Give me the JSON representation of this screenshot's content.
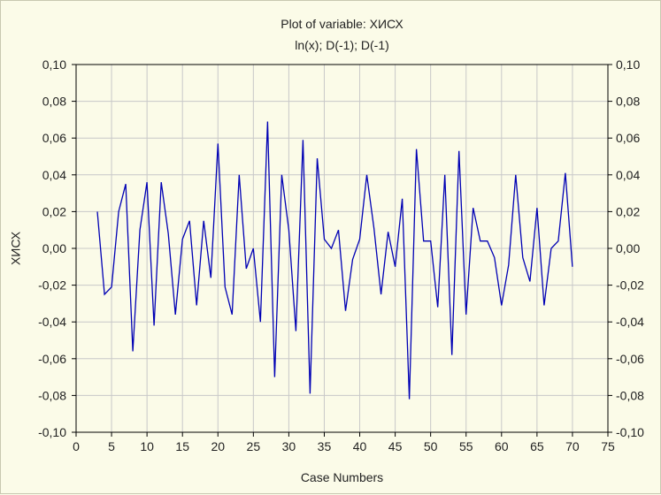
{
  "chart_data": {
    "type": "line",
    "title": "Plot of variable: ХИСХ",
    "subtitle": "ln(x); D(-1); D(-1)",
    "xlabel": "Case Numbers",
    "ylabel": "ХИСХ",
    "xlim": [
      0,
      75
    ],
    "ylim": [
      -0.1,
      0.1
    ],
    "x_ticks": [
      0,
      5,
      10,
      15,
      20,
      25,
      30,
      35,
      40,
      45,
      50,
      55,
      60,
      65,
      70,
      75
    ],
    "y_ticks": [
      -0.1,
      -0.08,
      -0.06,
      -0.04,
      -0.02,
      0.0,
      0.02,
      0.04,
      0.06,
      0.08,
      0.1
    ],
    "y_tick_labels": [
      "-0,10",
      "-0,08",
      "-0,06",
      "-0,04",
      "-0,02",
      "0,00",
      "0,02",
      "0,04",
      "0,06",
      "0,08",
      "0,10"
    ],
    "grid": true,
    "line_color": "#0000b4",
    "grid_color": "#c8c8c8",
    "series": [
      {
        "x": [
          3,
          4,
          5,
          6,
          7,
          8,
          9,
          10,
          11,
          12,
          13,
          14,
          15,
          16,
          17,
          18,
          19,
          20,
          21,
          22,
          23,
          24,
          25,
          26,
          27,
          28,
          29,
          30,
          31,
          32,
          33,
          34,
          35,
          36,
          37,
          38,
          39,
          40,
          41,
          42,
          43,
          44,
          45,
          46,
          47,
          48,
          49,
          50,
          51,
          52,
          53,
          54,
          55,
          56,
          57,
          58,
          59,
          60,
          61,
          62,
          63,
          64,
          65,
          66,
          67,
          68,
          69,
          70
        ],
        "y": [
          0.02,
          -0.025,
          -0.021,
          0.02,
          0.035,
          -0.056,
          0.01,
          0.036,
          -0.042,
          0.036,
          0.008,
          -0.036,
          0.005,
          0.015,
          -0.031,
          0.015,
          -0.016,
          0.057,
          -0.021,
          -0.036,
          0.04,
          -0.011,
          0.0,
          -0.04,
          0.069,
          -0.07,
          0.04,
          0.01,
          -0.045,
          0.059,
          -0.079,
          0.049,
          0.005,
          0.0,
          0.01,
          -0.034,
          -0.006,
          0.005,
          0.04,
          0.011,
          -0.025,
          0.009,
          -0.01,
          0.027,
          -0.082,
          0.054,
          0.004,
          0.004,
          -0.032,
          0.04,
          -0.058,
          0.053,
          -0.036,
          0.022,
          0.004,
          0.004,
          -0.005,
          -0.031,
          -0.009,
          0.04,
          -0.005,
          -0.018,
          0.022,
          -0.031,
          0.0,
          0.004,
          0.041,
          -0.01
        ]
      }
    ]
  }
}
